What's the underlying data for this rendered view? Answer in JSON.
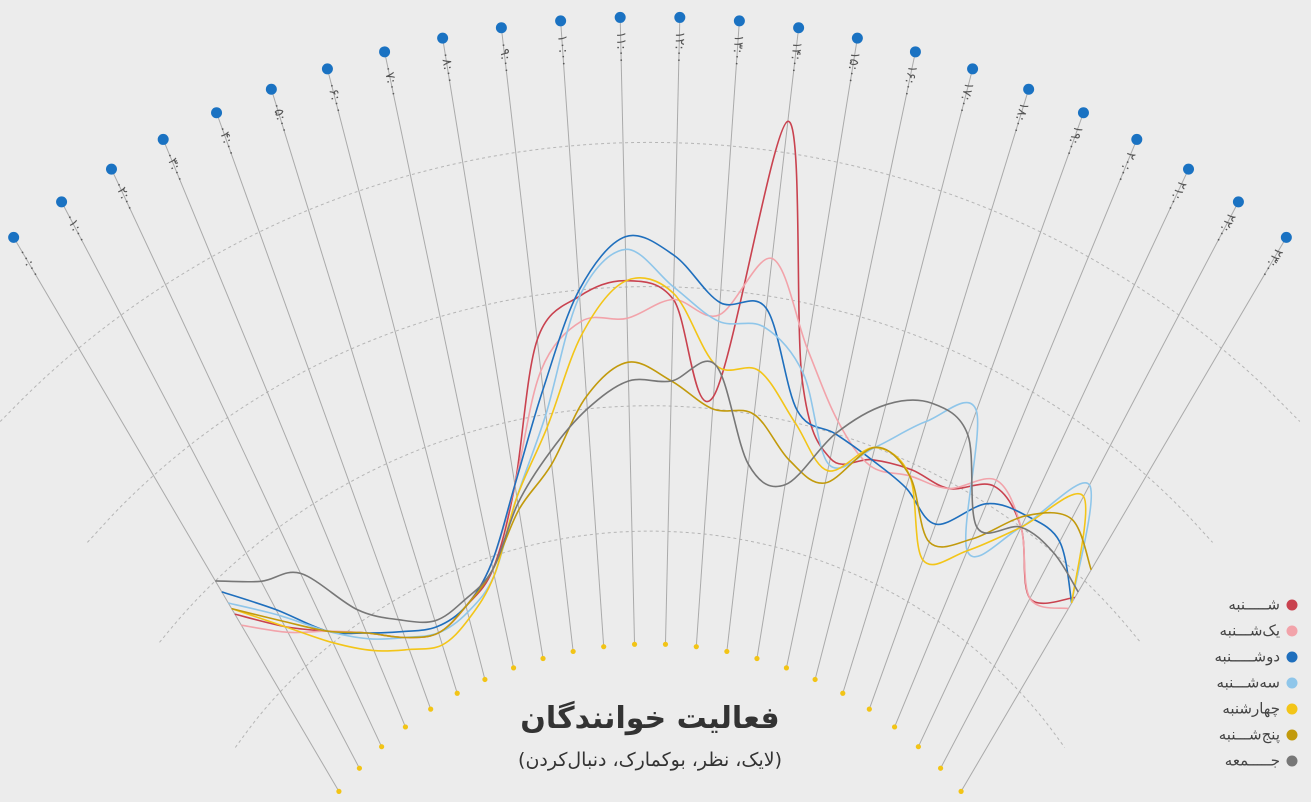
{
  "chart_data": {
    "type": "radial-line",
    "title": "فعالیت خوانندگان",
    "subtitle": "(لایک، نظر، بوکمارک، دنبال‌کردن)",
    "categories": [
      "۰۰:۰۰",
      "۰۱:۰۰",
      "۰۲:۰۰",
      "۰۳:۰۰",
      "۰۴:۰۰",
      "۰۵:۰۰",
      "۰۶:۰۰",
      "۰۷:۰۰",
      "۰۸:۰۰",
      "۰۹:۰۰",
      "۱۰:۰۰",
      "۱۱:۰۰",
      "۱۲:۰۰",
      "۱۳:۰۰",
      "۱۴:۰۰",
      "۱۵:۰۰",
      "۱۶:۰۰",
      "۱۷:۰۰",
      "۱۸:۰۰",
      "۱۹:۰۰",
      "۲۰:۰۰",
      "۲۱:۰۰",
      "۲۲:۰۰",
      "۲۳:۰۰"
    ],
    "ylim": [
      0,
      100
    ],
    "yticks": [
      18,
      38,
      57,
      80
    ],
    "grid": true,
    "legend": "bottom-right",
    "series": [
      {
        "name": "شـــــنبه",
        "color": "#c9424f",
        "values": [
          32,
          25,
          20,
          16,
          12,
          10,
          12,
          16,
          28,
          50,
          56,
          58,
          55,
          40,
          85,
          45,
          34,
          36,
          37,
          37,
          41,
          38,
          30,
          35
        ]
      },
      {
        "name": "یک‌شـــنبه",
        "color": "#f2a3aa",
        "values": [
          30,
          24,
          20,
          16,
          12,
          10,
          12,
          17,
          28,
          45,
          52,
          52,
          55,
          53,
          63,
          50,
          40,
          35,
          36,
          37,
          42,
          38,
          30,
          33
        ]
      },
      {
        "name": "دوشـــــنبه",
        "color": "#1f6fbd",
        "values": [
          36,
          28,
          20,
          16,
          13,
          11,
          12,
          17,
          28,
          42,
          57,
          65,
          62,
          55,
          55,
          40,
          38,
          36,
          34,
          31,
          38,
          40,
          40,
          34
        ]
      },
      {
        "name": "سه‌شـــنبه",
        "color": "#8fc6ea",
        "values": [
          34,
          27,
          20,
          15,
          12,
          10,
          11,
          15,
          26,
          38,
          56,
          63,
          57,
          52,
          52,
          46,
          33,
          38,
          45,
          50,
          30,
          38,
          50,
          34
        ]
      },
      {
        "name": "چهارشنبه",
        "color": "#f3c518",
        "values": [
          33,
          25,
          18,
          13,
          10,
          8,
          10,
          15,
          26,
          36,
          50,
          58,
          56,
          45,
          45,
          38,
          32,
          38,
          36,
          25,
          30,
          38,
          48,
          34
        ]
      },
      {
        "name": "پنج‌شـــنبه",
        "color": "#c29a0c",
        "values": [
          33,
          26,
          20,
          16,
          12,
          10,
          12,
          16,
          24,
          30,
          40,
          45,
          42,
          38,
          38,
          32,
          30,
          38,
          36,
          28,
          32,
          40,
          44,
          40
        ]
      },
      {
        "name": "جـــــمعه",
        "color": "#777777",
        "values": [
          38,
          33,
          30,
          20,
          15,
          12,
          13,
          16,
          25,
          32,
          38,
          42,
          42,
          45,
          30,
          28,
          38,
          45,
          48,
          46,
          34,
          38,
          38,
          36
        ]
      }
    ]
  }
}
